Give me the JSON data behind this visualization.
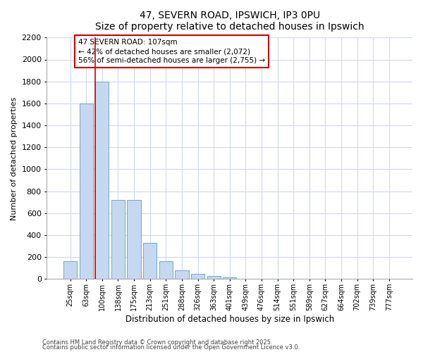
{
  "title": "47, SEVERN ROAD, IPSWICH, IP3 0PU",
  "subtitle": "Size of property relative to detached houses in Ipswich",
  "xlabel": "Distribution of detached houses by size in Ipswich",
  "ylabel": "Number of detached properties",
  "categories": [
    "25sqm",
    "63sqm",
    "100sqm",
    "138sqm",
    "175sqm",
    "213sqm",
    "251sqm",
    "288sqm",
    "326sqm",
    "363sqm",
    "401sqm",
    "439sqm",
    "476sqm",
    "514sqm",
    "551sqm",
    "589sqm",
    "627sqm",
    "664sqm",
    "702sqm",
    "739sqm",
    "777sqm"
  ],
  "values": [
    160,
    1600,
    1800,
    720,
    720,
    330,
    160,
    80,
    45,
    25,
    15,
    5,
    5,
    0,
    0,
    0,
    0,
    0,
    0,
    0,
    0
  ],
  "bar_color": "#c5d8f0",
  "bar_edge_color": "#6aaad4",
  "background_color": "#ffffff",
  "grid_color": "#d0d8f0",
  "red_line_bar_index": 2,
  "annotation_text": "47 SEVERN ROAD: 107sqm\n← 42% of detached houses are smaller (2,072)\n56% of semi-detached houses are larger (2,755) →",
  "annotation_box_color": "#ffffff",
  "annotation_box_edge": "#cc0000",
  "ylim": [
    0,
    2200
  ],
  "yticks": [
    0,
    200,
    400,
    600,
    800,
    1000,
    1200,
    1400,
    1600,
    1800,
    2000,
    2200
  ],
  "footer1": "Contains HM Land Registry data © Crown copyright and database right 2025.",
  "footer2": "Contains public sector information licensed under the Open Government Licence v3.0."
}
